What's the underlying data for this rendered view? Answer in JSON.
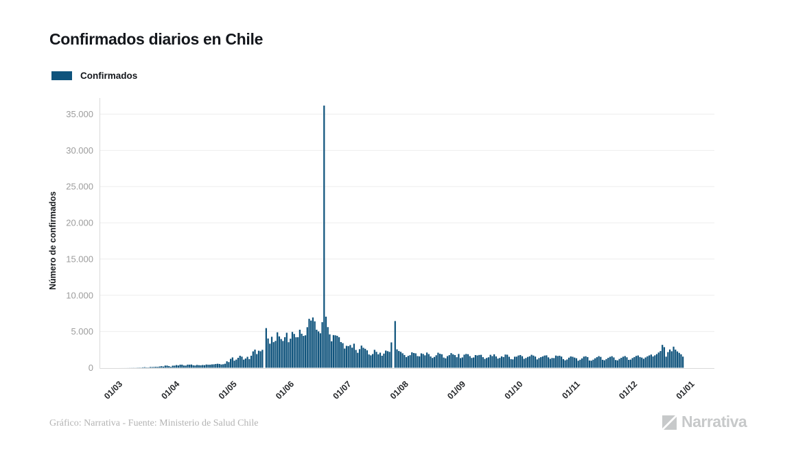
{
  "header": {
    "title": "Confirmados diarios en Chile"
  },
  "legend": {
    "items": [
      {
        "label": "Confirmados",
        "color": "#0f537c"
      }
    ]
  },
  "footer": {
    "credit": "Gráfico: Narrativa - Fuente: Ministerio de Salud Chile",
    "brand": "Narrativa"
  },
  "chart_data": {
    "type": "bar",
    "title": "Confirmados diarios en Chile",
    "series_name": "Confirmados",
    "xlabel": "",
    "ylabel": "Número de confirmados",
    "ylim": [
      0,
      37000
    ],
    "grid": true,
    "legend_position": "top-left",
    "bar_color": "#0f537c",
    "grid_color": "#ededed",
    "axis_color": "#d9d9d9",
    "x_tick_labels": [
      "01/03",
      "01/04",
      "01/05",
      "01/06",
      "01/07",
      "01/08",
      "01/09",
      "01/10",
      "01/11",
      "01/12",
      "01/01"
    ],
    "y_tick_values": [
      0,
      5000,
      10000,
      15000,
      20000,
      25000,
      30000,
      35000
    ],
    "y_tick_labels": [
      "0",
      "5.000",
      "10.000",
      "15.000",
      "20.000",
      "25.000",
      "30.000",
      "35.000"
    ],
    "x_frequency": "daily",
    "x_start": "03/03",
    "x_end": "29/12",
    "values": [
      1,
      2,
      3,
      4,
      6,
      10,
      12,
      17,
      12,
      23,
      32,
      28,
      56,
      81,
      45,
      40,
      104,
      96,
      112,
      130,
      114,
      176,
      220,
      164,
      304,
      299,
      230,
      128,
      289,
      293,
      373,
      312,
      426,
      424,
      310,
      301,
      430,
      426,
      445,
      342,
      312,
      392,
      356,
      336,
      380,
      358,
      445,
      420,
      419,
      464,
      473,
      516,
      552,
      522,
      452,
      482,
      552,
      888,
      780,
      1228,
      1427,
      980,
      1123,
      1373,
      1658,
      1533,
      1120,
      1275,
      1512,
      1197,
      1658,
      2260,
      2502,
      1886,
      2353,
      2278,
      2475,
      0,
      5471,
      4038,
      3320,
      4276,
      3536,
      3709,
      4895,
      4328,
      3964,
      3695,
      4220,
      4830,
      3527,
      4008,
      4942,
      4664,
      4207,
      4216,
      5246,
      4696,
      4392,
      4475,
      5596,
      6754,
      6509,
      6938,
      6405,
      5249,
      5013,
      4757,
      6290,
      36179,
      7050,
      5607,
      4608,
      3649,
      4509,
      4475,
      4406,
      4216,
      3548,
      3394,
      2650,
      3025,
      2985,
      3133,
      2770,
      3322,
      2462,
      2064,
      2566,
      3058,
      2755,
      2616,
      2402,
      1836,
      1712,
      1894,
      2475,
      2198,
      1857,
      2084,
      1656,
      1956,
      2371,
      2287,
      2198,
      3500,
      0,
      6444,
      2538,
      2310,
      2198,
      1998,
      1762,
      1469,
      1642,
      1739,
      2131,
      2033,
      1988,
      1612,
      1572,
      1988,
      1906,
      1711,
      2099,
      1890,
      1563,
      1353,
      1494,
      1723,
      2077,
      1929,
      1862,
      1408,
      1303,
      1606,
      1743,
      2022,
      1848,
      1747,
      1458,
      1903,
      1332,
      1428,
      1806,
      1906,
      1871,
      1604,
      1349,
      1419,
      1751,
      1697,
      1764,
      1785,
      1461,
      1219,
      1353,
      1447,
      1786,
      1606,
      1857,
      1565,
      1267,
      1354,
      1570,
      1474,
      1822,
      1802,
      1514,
      1195,
      1155,
      1525,
      1533,
      1694,
      1754,
      1593,
      1226,
      1343,
      1492,
      1584,
      1786,
      1679,
      1544,
      1152,
      1336,
      1462,
      1562,
      1684,
      1713,
      1434,
      1232,
      1347,
      1329,
      1682,
      1618,
      1658,
      1541,
      1193,
      1026,
      1141,
      1392,
      1562,
      1514,
      1404,
      1311,
      974,
      1108,
      1293,
      1537,
      1586,
      1473,
      1002,
      977,
      1113,
      1302,
      1459,
      1602,
      1498,
      1099,
      1031,
      1199,
      1365,
      1507,
      1594,
      1423,
      1068,
      1019,
      1217,
      1369,
      1526,
      1615,
      1442,
      1088,
      1123,
      1339,
      1476,
      1633,
      1697,
      1481,
      1403,
      1238,
      1419,
      1577,
      1703,
      1822,
      1556,
      1712,
      1884,
      2106,
      2306,
      3156,
      2841,
      1528,
      2160,
      2520,
      2275,
      2909,
      2501,
      2254,
      2056,
      1856,
      1537
    ]
  }
}
